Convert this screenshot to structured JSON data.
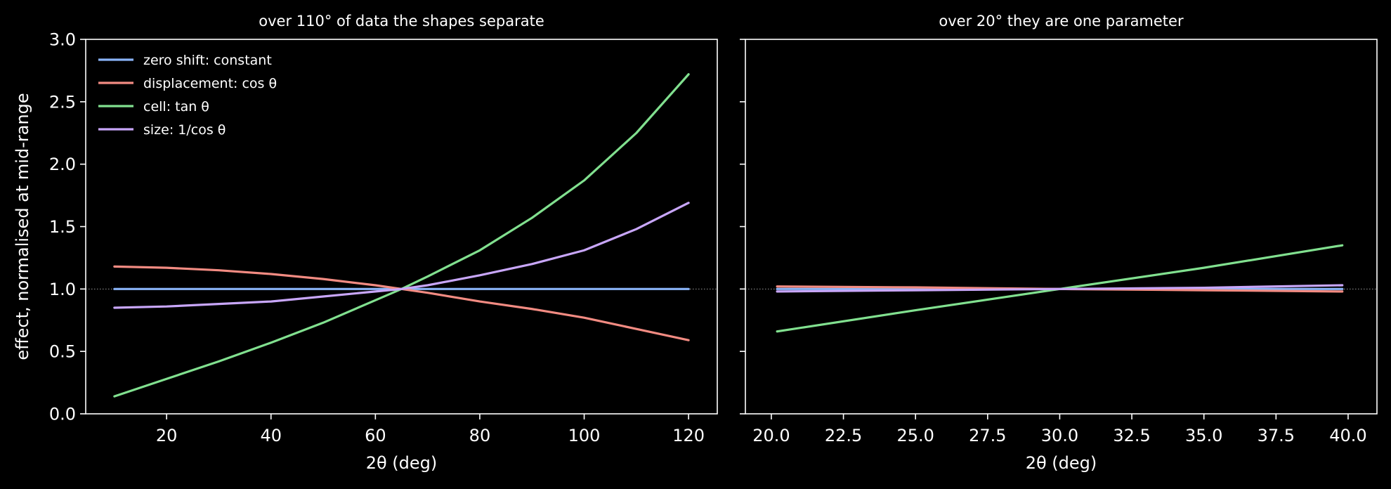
{
  "chart_data": [
    {
      "type": "line",
      "title": "over 110° of data the shapes separate",
      "xlabel": "2θ (deg)",
      "ylabel": "effect, normalised at mid-range",
      "xlim": [
        4.5,
        125.5
      ],
      "ylim": [
        0.0,
        3.0
      ],
      "xticks": [
        20,
        40,
        60,
        80,
        100,
        120
      ],
      "xtick_labels": [
        "20",
        "40",
        "60",
        "80",
        "100",
        "120"
      ],
      "yticks": [
        0.0,
        0.5,
        1.0,
        1.5,
        2.0,
        2.5,
        3.0
      ],
      "ytick_labels": [
        "0.0",
        "0.5",
        "1.0",
        "1.5",
        "2.0",
        "2.5",
        "3.0"
      ],
      "reference_line": 1.0,
      "grid": false,
      "legend_position": "top-left",
      "x": [
        10,
        20,
        30,
        40,
        50,
        60,
        65,
        70,
        80,
        90,
        100,
        110,
        120
      ],
      "series": [
        {
          "name": "zero shift: constant",
          "color": "#8ab4f8",
          "values": [
            1.0,
            1.0,
            1.0,
            1.0,
            1.0,
            1.0,
            1.0,
            1.0,
            1.0,
            1.0,
            1.0,
            1.0,
            1.0
          ]
        },
        {
          "name": "displacement: cos θ",
          "color": "#f28b82",
          "values": [
            1.18,
            1.17,
            1.15,
            1.12,
            1.08,
            1.03,
            1.0,
            0.97,
            0.9,
            0.84,
            0.77,
            0.68,
            0.59
          ]
        },
        {
          "name": "cell: tan θ",
          "color": "#81e08f",
          "values": [
            0.14,
            0.28,
            0.42,
            0.57,
            0.73,
            0.91,
            1.0,
            1.1,
            1.31,
            1.57,
            1.87,
            2.25,
            2.72
          ]
        },
        {
          "name": "size: 1/cos θ",
          "color": "#c8a6f9",
          "values": [
            0.85,
            0.86,
            0.88,
            0.9,
            0.94,
            0.98,
            1.0,
            1.03,
            1.11,
            1.2,
            1.31,
            1.48,
            1.69
          ]
        }
      ]
    },
    {
      "type": "line",
      "title": "over 20° they are one parameter",
      "xlabel": "2θ (deg)",
      "ylabel": "",
      "xlim": [
        19.1,
        41.0
      ],
      "ylim": [
        0.0,
        3.0
      ],
      "xticks": [
        20,
        22.5,
        25,
        27.5,
        30,
        32.5,
        35,
        37.5,
        40
      ],
      "xtick_labels": [
        "20.0",
        "22.5",
        "25.0",
        "27.5",
        "30.0",
        "32.5",
        "35.0",
        "37.5",
        "40.0"
      ],
      "yticks": [
        0.0,
        0.5,
        1.0,
        1.5,
        2.0,
        2.5,
        3.0
      ],
      "ytick_labels": [
        "",
        "",
        "",
        "",
        "",
        "",
        ""
      ],
      "reference_line": 1.0,
      "grid": false,
      "x": [
        20.2,
        25,
        30,
        35,
        39.8
      ],
      "series": [
        {
          "name": "zero shift: constant",
          "color": "#8ab4f8",
          "values": [
            1.0,
            1.0,
            1.0,
            1.0,
            1.0
          ]
        },
        {
          "name": "displacement: cos θ",
          "color": "#f28b82",
          "values": [
            1.02,
            1.013,
            1.0,
            0.99,
            0.98
          ]
        },
        {
          "name": "cell: tan θ",
          "color": "#81e08f",
          "values": [
            0.66,
            0.83,
            1.0,
            1.17,
            1.35
          ]
        },
        {
          "name": "size: 1/cos θ",
          "color": "#c8a6f9",
          "values": [
            0.98,
            0.99,
            1.0,
            1.01,
            1.03
          ]
        }
      ]
    }
  ]
}
